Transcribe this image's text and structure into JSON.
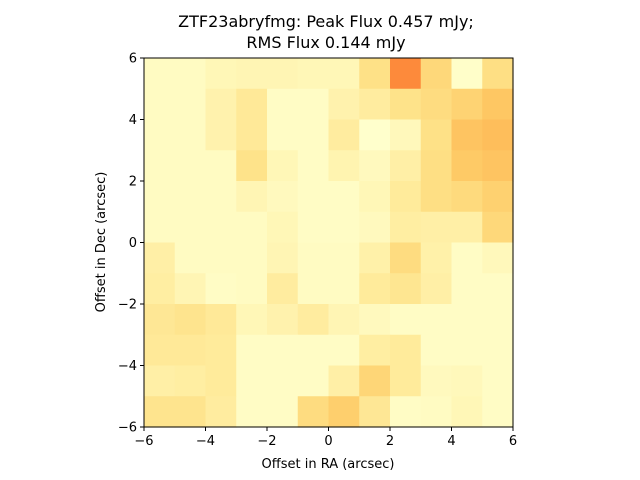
{
  "chart_data": {
    "type": "heatmap",
    "title_line1": "ZTF23abryfmg: Peak Flux 0.457 mJy;",
    "title_line2": "RMS Flux 0.144 mJy",
    "xlabel": "Offset in RA (arcsec)",
    "ylabel": "Offset in Dec (arcsec)",
    "xlim": [
      -6,
      6
    ],
    "ylim": [
      -6,
      6
    ],
    "xticks": [
      -6,
      -4,
      -2,
      0,
      2,
      4,
      6
    ],
    "yticks": [
      -6,
      -4,
      -2,
      0,
      2,
      4,
      6
    ],
    "tick_labels_x": [
      "−6",
      "−4",
      "−2",
      "0",
      "2",
      "4",
      "6"
    ],
    "tick_labels_y": [
      "−6",
      "−4",
      "−2",
      "0",
      "2",
      "4",
      "6"
    ],
    "colormap": [
      "#ffffcc",
      "#fff1a9",
      "#fee187",
      "#feca66",
      "#feab4b",
      "#fd8a3b"
    ],
    "rows_top_to_bottom": [
      [
        0.06,
        0.06,
        0.12,
        0.14,
        0.14,
        0.12,
        0.12,
        0.4,
        1.0,
        0.48,
        0.02,
        0.42
      ],
      [
        0.06,
        0.06,
        0.18,
        0.3,
        0.04,
        0.04,
        0.18,
        0.26,
        0.38,
        0.44,
        0.52,
        0.62
      ],
      [
        0.06,
        0.06,
        0.18,
        0.3,
        0.04,
        0.04,
        0.26,
        0.0,
        0.1,
        0.4,
        0.64,
        0.68
      ],
      [
        0.06,
        0.06,
        0.06,
        0.38,
        0.12,
        0.04,
        0.16,
        0.08,
        0.22,
        0.42,
        0.6,
        0.64
      ],
      [
        0.06,
        0.06,
        0.06,
        0.14,
        0.08,
        0.04,
        0.04,
        0.12,
        0.28,
        0.42,
        0.46,
        0.54
      ],
      [
        0.06,
        0.06,
        0.06,
        0.06,
        0.12,
        0.04,
        0.04,
        0.08,
        0.24,
        0.22,
        0.22,
        0.48
      ],
      [
        0.22,
        0.06,
        0.06,
        0.06,
        0.14,
        0.06,
        0.06,
        0.2,
        0.44,
        0.2,
        0.04,
        0.1
      ],
      [
        0.24,
        0.14,
        0.04,
        0.06,
        0.26,
        0.06,
        0.06,
        0.28,
        0.34,
        0.22,
        0.04,
        0.04
      ],
      [
        0.32,
        0.36,
        0.3,
        0.12,
        0.18,
        0.26,
        0.14,
        0.08,
        0.04,
        0.04,
        0.04,
        0.04
      ],
      [
        0.3,
        0.3,
        0.28,
        0.04,
        0.04,
        0.04,
        0.04,
        0.24,
        0.28,
        0.04,
        0.04,
        0.04
      ],
      [
        0.22,
        0.24,
        0.28,
        0.04,
        0.04,
        0.04,
        0.22,
        0.5,
        0.28,
        0.08,
        0.1,
        0.04
      ],
      [
        0.36,
        0.36,
        0.26,
        0.04,
        0.04,
        0.44,
        0.56,
        0.32,
        0.04,
        0.06,
        0.12,
        0.04
      ]
    ]
  }
}
